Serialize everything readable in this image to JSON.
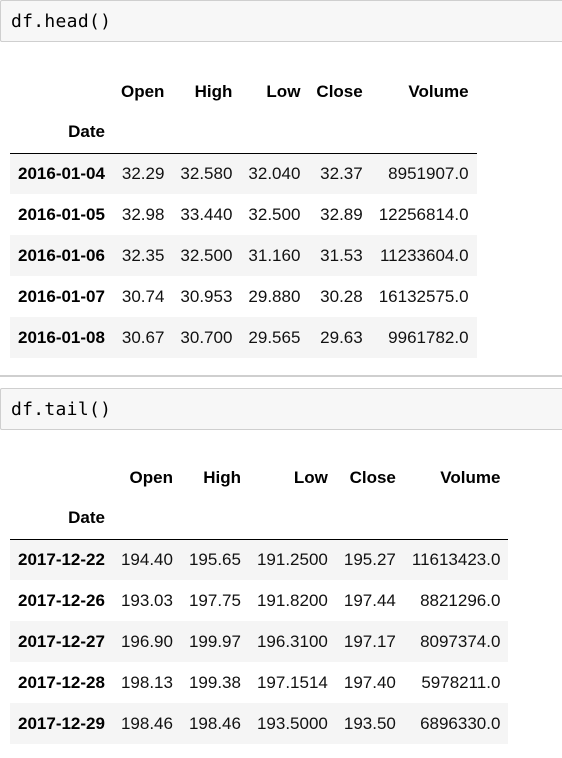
{
  "cells": {
    "head": {
      "code": "df.head()",
      "columns": [
        "Open",
        "High",
        "Low",
        "Close",
        "Volume"
      ],
      "index_name": "Date",
      "rows": [
        {
          "date": "2016-01-04",
          "open": "32.29",
          "high": "32.580",
          "low": "32.040",
          "close": "32.37",
          "volume": "8951907.0"
        },
        {
          "date": "2016-01-05",
          "open": "32.98",
          "high": "33.440",
          "low": "32.500",
          "close": "32.89",
          "volume": "12256814.0"
        },
        {
          "date": "2016-01-06",
          "open": "32.35",
          "high": "32.500",
          "low": "31.160",
          "close": "31.53",
          "volume": "11233604.0"
        },
        {
          "date": "2016-01-07",
          "open": "30.74",
          "high": "30.953",
          "low": "29.880",
          "close": "30.28",
          "volume": "16132575.0"
        },
        {
          "date": "2016-01-08",
          "open": "30.67",
          "high": "30.700",
          "low": "29.565",
          "close": "29.63",
          "volume": "9961782.0"
        }
      ]
    },
    "tail": {
      "code": "df.tail()",
      "columns": [
        "Open",
        "High",
        "Low",
        "Close",
        "Volume"
      ],
      "index_name": "Date",
      "rows": [
        {
          "date": "2017-12-22",
          "open": "194.40",
          "high": "195.65",
          "low": "191.2500",
          "close": "195.27",
          "volume": "11613423.0"
        },
        {
          "date": "2017-12-26",
          "open": "193.03",
          "high": "197.75",
          "low": "191.8200",
          "close": "197.44",
          "volume": "8821296.0"
        },
        {
          "date": "2017-12-27",
          "open": "196.90",
          "high": "199.97",
          "low": "196.3100",
          "close": "197.17",
          "volume": "8097374.0"
        },
        {
          "date": "2017-12-28",
          "open": "198.13",
          "high": "199.38",
          "low": "197.1514",
          "close": "197.40",
          "volume": "5978211.0"
        },
        {
          "date": "2017-12-29",
          "open": "198.46",
          "high": "198.46",
          "low": "193.5000",
          "close": "193.50",
          "volume": "6896330.0"
        }
      ]
    }
  }
}
